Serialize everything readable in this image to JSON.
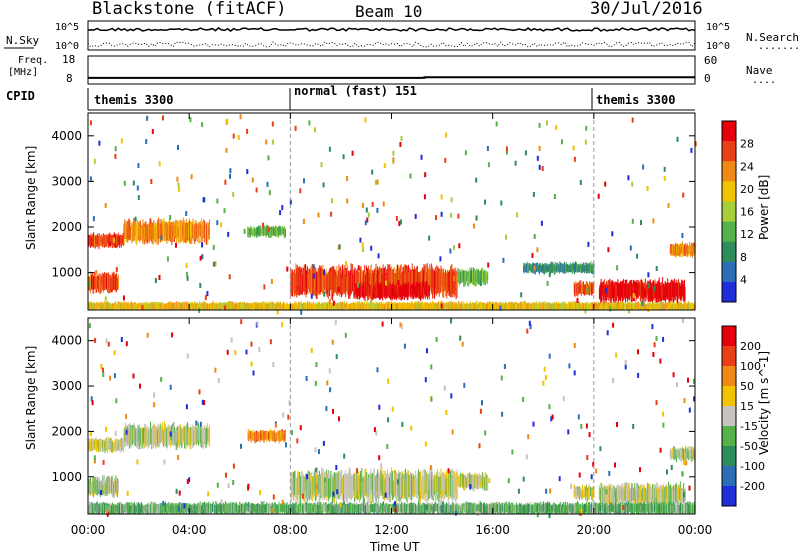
{
  "header": {
    "station": "Blackstone (fitACF)",
    "beam": "Beam 10",
    "date": "30/Jul/2016"
  },
  "noise_panel": {
    "left_label": "N.Sky",
    "right_label": "N.Search",
    "right_label_dots": "........",
    "tick_top": "10^5",
    "tick_bottom": "10^0"
  },
  "freq_panel": {
    "left_label_line1": "Freq.",
    "left_label_line2": "[MHz]",
    "right_label": "Nave",
    "right_label_dots": "....",
    "left_ticks": [
      "18",
      "8"
    ],
    "right_ticks": [
      "60",
      "0"
    ],
    "frequency_mhz": [
      10.2,
      10.2,
      10.4,
      10.4
    ],
    "nave": [
      22,
      22,
      22,
      22
    ]
  },
  "cpid_panel": {
    "label": "CPID",
    "segments": [
      {
        "start_h": 0,
        "end_h": 8,
        "name": "themis 3300"
      },
      {
        "start_h": 8,
        "end_h": 20,
        "name": "normal (fast) 151"
      },
      {
        "start_h": 20,
        "end_h": 24,
        "name": "themis 3300"
      }
    ]
  },
  "colors": {
    "power_scale": [
      "#1e2edb",
      "#2d6fb6",
      "#2e8c5a",
      "#55b24a",
      "#a6cf3b",
      "#f2c400",
      "#f08a16",
      "#ea3f16",
      "#e5000c"
    ],
    "velocity_scale": [
      "#1e2edb",
      "#2d6fb6",
      "#2e8c5a",
      "#55b24a",
      "#c6c4bc",
      "#f2c400",
      "#f08a16",
      "#ea3f16",
      "#e5000c"
    ]
  },
  "chart_data": [
    {
      "type": "heatmap",
      "title": "Power",
      "xlabel": "",
      "ylabel": "Slant Range [km]",
      "colorbar_label": "Power [dB]",
      "colorbar_ticks": [
        "28",
        "24",
        "20",
        "16",
        "12",
        "8",
        "4"
      ],
      "x_ticks": [],
      "y_ticks": [
        "1000",
        "2000",
        "3000",
        "4000"
      ],
      "xlim_hours": [
        0,
        24
      ],
      "ylim_km": [
        180,
        4500
      ],
      "grid": false,
      "echo_regions": [
        {
          "t0": 0.0,
          "t1": 1.4,
          "r_center": 1700,
          "r_width": 250,
          "level": 7
        },
        {
          "t0": 1.4,
          "t1": 4.8,
          "r_center": 1900,
          "r_width": 420,
          "level": 6
        },
        {
          "t0": 0.0,
          "t1": 1.2,
          "r_center": 780,
          "r_width": 350,
          "level": 7
        },
        {
          "t0": 6.3,
          "t1": 7.8,
          "r_center": 1900,
          "r_width": 200,
          "level": 3
        },
        {
          "t0": 8.0,
          "t1": 14.6,
          "r_center": 800,
          "r_width": 550,
          "level": 7
        },
        {
          "t0": 10.5,
          "t1": 13.5,
          "r_center": 600,
          "r_width": 300,
          "level": 8
        },
        {
          "t0": 14.6,
          "t1": 15.8,
          "r_center": 900,
          "r_width": 300,
          "level": 3
        },
        {
          "t0": 17.2,
          "t1": 20.0,
          "r_center": 1100,
          "r_width": 200,
          "level": 2
        },
        {
          "t0": 19.2,
          "t1": 20.0,
          "r_center": 650,
          "r_width": 250,
          "level": 7
        },
        {
          "t0": 20.2,
          "t1": 23.6,
          "r_center": 600,
          "r_width": 400,
          "level": 8
        },
        {
          "t0": 23.0,
          "t1": 24.0,
          "r_center": 1500,
          "r_width": 250,
          "level": 6
        },
        {
          "t0": 0.0,
          "t1": 24.0,
          "r_center": 260,
          "r_width": 160,
          "level": 5
        }
      ]
    },
    {
      "type": "heatmap",
      "title": "Velocity",
      "xlabel": "Time UT",
      "ylabel": "Slant Range [km]",
      "colorbar_label": "Velocity [m s^-1]",
      "colorbar_ticks": [
        "200",
        "100",
        "50",
        "15",
        "-15",
        "-50",
        "-100",
        "-200"
      ],
      "x_ticks": [
        "00:00",
        "04:00",
        "08:00",
        "12:00",
        "16:00",
        "20:00",
        "00:00"
      ],
      "y_ticks": [
        "1000",
        "2000",
        "3000",
        "4000"
      ],
      "xlim_hours": [
        0,
        24
      ],
      "ylim_km": [
        180,
        4500
      ],
      "grid": false,
      "echo_regions": [
        {
          "t0": 0.0,
          "t1": 1.4,
          "r_center": 1700,
          "r_width": 250,
          "level": 4
        },
        {
          "t0": 1.4,
          "t1": 4.8,
          "r_center": 1900,
          "r_width": 420,
          "level": 4
        },
        {
          "t0": 0.0,
          "t1": 1.2,
          "r_center": 780,
          "r_width": 350,
          "level": 4
        },
        {
          "t0": 6.3,
          "t1": 7.8,
          "r_center": 1900,
          "r_width": 220,
          "level": 6
        },
        {
          "t0": 8.0,
          "t1": 14.6,
          "r_center": 800,
          "r_width": 550,
          "level": 4
        },
        {
          "t0": 14.6,
          "t1": 15.8,
          "r_center": 900,
          "r_width": 300,
          "level": 4
        },
        {
          "t0": 19.2,
          "t1": 20.0,
          "r_center": 650,
          "r_width": 250,
          "level": 4
        },
        {
          "t0": 20.2,
          "t1": 23.6,
          "r_center": 600,
          "r_width": 400,
          "level": 4
        },
        {
          "t0": 23.0,
          "t1": 24.0,
          "r_center": 1500,
          "r_width": 250,
          "level": 4
        },
        {
          "t0": 0.0,
          "t1": 24.0,
          "r_center": 300,
          "r_width": 220,
          "level": 3
        }
      ]
    }
  ]
}
